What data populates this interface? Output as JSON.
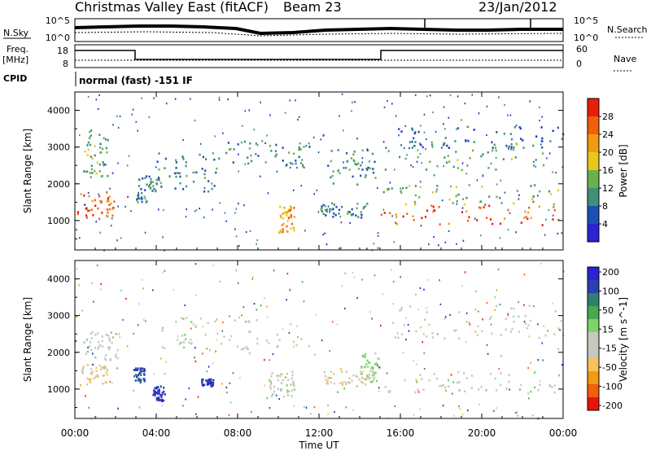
{
  "header": {
    "title": "Christmas Valley East (fitACF)",
    "beam": "Beam 23",
    "date": "23/Jan/2012"
  },
  "summary": {
    "nsky_label": "N.Sky",
    "nsearch_label": "N.Search",
    "freq_label_line1": "Freq.",
    "freq_label_line2": "[MHz]",
    "nave_label": "Nave",
    "cpid_label": "CPID",
    "cpid_text": "normal (fast) -151 IF",
    "noise_left_ticks": [
      "10^5",
      "10^0"
    ],
    "noise_right_ticks": [
      "10^5",
      "10^0"
    ],
    "freq_ticks": [
      "18",
      "8"
    ],
    "nave_ticks": [
      "60",
      "0"
    ]
  },
  "colors": {
    "power_scale": [
      "#2a24d6",
      "#1f4fb4",
      "#3f8f7b",
      "#6bb04f",
      "#e8c81e",
      "#f39a14",
      "#f25e0a",
      "#e81e0a"
    ],
    "velocity_scale": [
      "#e8140a",
      "#f25e0a",
      "#f39a14",
      "#f7c25a",
      "#c8c8c0",
      "#c8c8c0",
      "#7fd36a",
      "#4aa84e",
      "#2f7f6e",
      "#2a3fb0",
      "#2a24d6"
    ]
  },
  "chart_data": [
    {
      "type": "heatmap",
      "panel": "power",
      "ylabel": "Slant Range [km]",
      "yticks": [
        "1000",
        "2000",
        "3000",
        "4000"
      ],
      "ylim": [
        200,
        4500
      ],
      "colorbar_label": "Power [dB]",
      "colorbar_ticks": [
        "4",
        "8",
        "12",
        "16",
        "20",
        "24",
        "28"
      ],
      "colorbar_range": [
        0,
        32
      ],
      "bands": [
        {
          "t0": 0.1,
          "t1": 1.9,
          "r0": 1000,
          "r1": 1800,
          "value": 26
        },
        {
          "t0": 0.3,
          "t1": 1.6,
          "r0": 2200,
          "r1": 3500,
          "value": 12
        },
        {
          "t0": 3.0,
          "t1": 4.0,
          "r0": 1500,
          "r1": 2300,
          "value": 10
        },
        {
          "t0": 4.0,
          "t1": 7.0,
          "r0": 1800,
          "r1": 2900,
          "value": 9
        },
        {
          "t0": 7.0,
          "t1": 11.5,
          "r0": 2500,
          "r1": 3200,
          "value": 10
        },
        {
          "t0": 10.0,
          "t1": 10.8,
          "r0": 700,
          "r1": 1500,
          "value": 22
        },
        {
          "t0": 12.0,
          "t1": 14.4,
          "r0": 1100,
          "r1": 1500,
          "value": 9
        },
        {
          "t0": 12.4,
          "t1": 14.8,
          "r0": 2000,
          "r1": 3000,
          "value": 11
        },
        {
          "t0": 15.0,
          "t1": 24.0,
          "r0": 900,
          "r1": 1450,
          "value": 27
        },
        {
          "t0": 15.0,
          "t1": 24.0,
          "r0": 1450,
          "r1": 2000,
          "value": 14
        },
        {
          "t0": 15.2,
          "t1": 23.0,
          "r0": 2400,
          "r1": 3200,
          "value": 12
        },
        {
          "t0": 15.5,
          "t1": 24.0,
          "r0": 3000,
          "r1": 3600,
          "value": 7
        }
      ]
    },
    {
      "type": "heatmap",
      "panel": "velocity",
      "ylabel": "Slant Range [km]",
      "yticks": [
        "1000",
        "2000",
        "3000",
        "4000"
      ],
      "ylim": [
        200,
        4500
      ],
      "xlabel": "Time UT",
      "xticks": [
        "00:00",
        "04:00",
        "08:00",
        "12:00",
        "16:00",
        "20:00",
        "00:00"
      ],
      "xlim": [
        0,
        24
      ],
      "colorbar_label": "Velocity [m s^-1]",
      "colorbar_ticks": [
        "200",
        "100",
        "50",
        "15",
        "-15",
        "-50",
        "-100",
        "-200"
      ],
      "colorbar_range": [
        -250,
        250
      ],
      "bands": [
        {
          "t0": 0.2,
          "t1": 1.6,
          "r0": 1100,
          "r1": 1700,
          "value": -60
        },
        {
          "t0": 0.5,
          "t1": 2.2,
          "r0": 1800,
          "r1": 2600,
          "value": 0
        },
        {
          "t0": 2.8,
          "t1": 3.4,
          "r0": 1200,
          "r1": 1600,
          "value": 180
        },
        {
          "t0": 3.8,
          "t1": 4.4,
          "r0": 700,
          "r1": 1100,
          "value": 200
        },
        {
          "t0": 6.2,
          "t1": 6.8,
          "r0": 1100,
          "r1": 1300,
          "value": 200
        },
        {
          "t0": 4.0,
          "t1": 11.5,
          "r0": 2000,
          "r1": 3000,
          "value": 0
        },
        {
          "t0": 9.5,
          "t1": 10.8,
          "r0": 800,
          "r1": 1500,
          "value": 0
        },
        {
          "t0": 12.0,
          "t1": 14.5,
          "r0": 1100,
          "r1": 1500,
          "value": -60
        },
        {
          "t0": 14.0,
          "t1": 14.9,
          "r0": 1200,
          "r1": 2000,
          "value": 40
        },
        {
          "t0": 15.0,
          "t1": 24.0,
          "r0": 900,
          "r1": 1500,
          "value": 0
        },
        {
          "t0": 15.5,
          "t1": 24.0,
          "r0": 2400,
          "r1": 3300,
          "value": -40
        }
      ]
    }
  ]
}
